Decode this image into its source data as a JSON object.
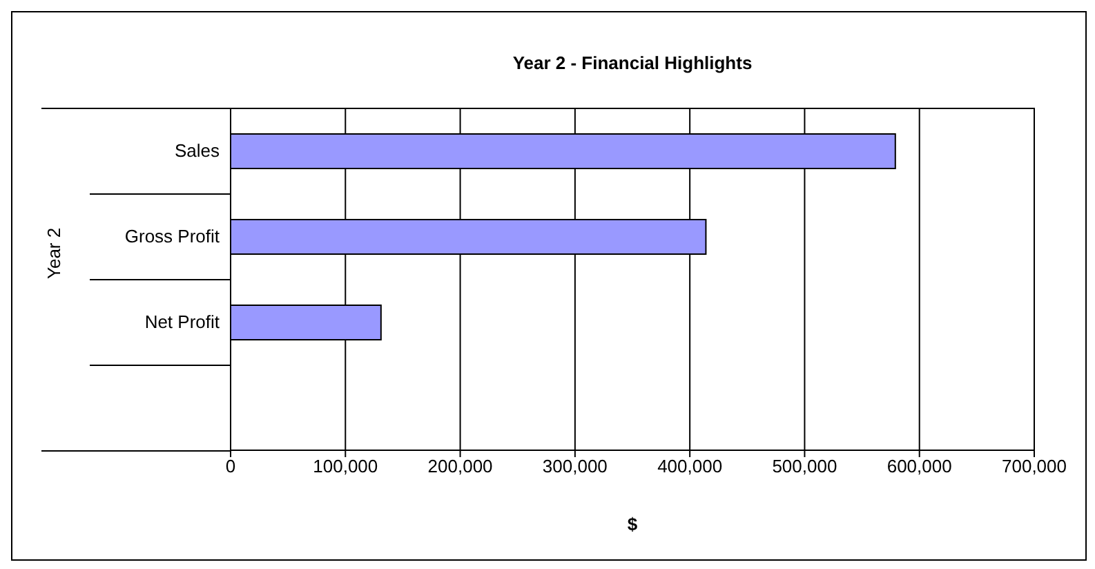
{
  "chart_data": {
    "type": "bar",
    "orientation": "horizontal",
    "title": "Year 2 - Financial Highlights",
    "xlabel": "$",
    "ylabel": "Year 2",
    "categories": [
      "Sales",
      "Gross Profit",
      "Net Profit",
      null
    ],
    "values": [
      579000,
      414000,
      131000,
      null
    ],
    "color": "#9999ff",
    "xlim": [
      0,
      700000
    ],
    "xticks": [
      {
        "value": 0,
        "label": "0"
      },
      {
        "value": 100000,
        "label": "100,000"
      },
      {
        "value": 200000,
        "label": "200,000"
      },
      {
        "value": 300000,
        "label": "300,000"
      },
      {
        "value": 400000,
        "label": "400,000"
      },
      {
        "value": 500000,
        "label": "500,000"
      },
      {
        "value": 600000,
        "label": "600,000"
      },
      {
        "value": 700000,
        "label": "700,000"
      }
    ],
    "grid": "x",
    "legend": false
  }
}
